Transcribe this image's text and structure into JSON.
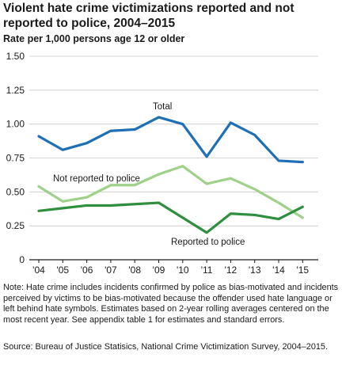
{
  "chart_data": {
    "type": "line",
    "title": "Violent hate crime victimizations reported and not reported to police, 2004–2015",
    "ylabel": "Rate per 1,000 persons age 12 or older",
    "xlabel": "",
    "categories": [
      "'04",
      "'05",
      "'06",
      "'07",
      "'08",
      "'09",
      "'10",
      "'11",
      "'12",
      "'13",
      "'14",
      "'15"
    ],
    "y_ticks": [
      "0",
      "0.25",
      "0.50",
      "0.75",
      "1.00",
      "1.25",
      "1.50"
    ],
    "ylim": [
      0,
      1.5
    ],
    "grid": true,
    "series": [
      {
        "name": "Total",
        "color": "#1f6fb4",
        "values": [
          0.91,
          0.81,
          0.86,
          0.95,
          0.96,
          1.05,
          1.0,
          0.76,
          1.01,
          0.92,
          0.73,
          0.72
        ]
      },
      {
        "name": "Not reported to police",
        "color": "#9fd18b",
        "values": [
          0.54,
          0.43,
          0.46,
          0.55,
          0.55,
          0.63,
          0.69,
          0.56,
          0.6,
          0.52,
          0.42,
          0.31
        ]
      },
      {
        "name": "Reported to police",
        "color": "#2f8f3f",
        "values": [
          0.36,
          0.38,
          0.4,
          0.4,
          0.41,
          0.42,
          0.31,
          0.2,
          0.34,
          0.33,
          0.3,
          0.39
        ]
      }
    ]
  },
  "note": "Note: Hate crime includes incidents confirmed by police as bias-motivated and incidents perceived by victims to be bias-motivated because the offender used hate language or left behind hate symbols. Estimates based on 2-year rolling averages centered on the most recent year. See appendix table 1 for estimates and standard errors.",
  "source": "Source: Bureau of Justice Statisics, National Crime Victimization Survey, 2004–2015."
}
